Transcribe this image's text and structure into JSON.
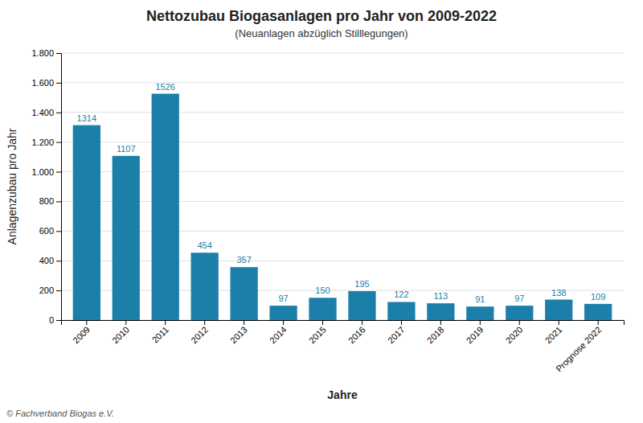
{
  "chart_data": {
    "type": "bar",
    "title": "Nettozubau Biogasanlagen pro Jahr von 2009-2022",
    "subtitle": "(Neuanlagen abzüglich Stilllegungen)",
    "xlabel": "Jahre",
    "ylabel": "Anlagenzubau pro Jahr",
    "footnote": "© Fachverband Biogas e.V.",
    "categories": [
      "2009",
      "2010",
      "2011",
      "2012",
      "2013",
      "2014",
      "2015",
      "2016",
      "2017",
      "2018",
      "2019",
      "2020",
      "2021",
      "Prognose 2022"
    ],
    "values": [
      1314,
      1107,
      1526,
      454,
      357,
      97,
      150,
      195,
      122,
      113,
      91,
      97,
      138,
      109
    ],
    "color": "#1b7faa",
    "ylim": [
      0,
      1800
    ],
    "yticks": [
      0,
      200,
      400,
      600,
      800,
      {
        "value": 1000,
        "label": "1.000"
      },
      {
        "value": 1200,
        "label": "1.200"
      },
      {
        "value": 1400,
        "label": "1.400"
      },
      {
        "value": 1600,
        "label": "1.600"
      },
      {
        "value": 1800,
        "label": "1.800"
      }
    ],
    "grid": true,
    "data_labels": true
  }
}
